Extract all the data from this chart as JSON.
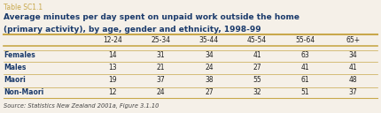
{
  "table_label": "Table SC1.1",
  "title_line1": "Average minutes per day spent on unpaid work outside the home",
  "title_line2": "(primary activity), by age, gender and ethnicity, 1998-99",
  "source": "Source: Statistics New Zealand 2001a, Figure 3.1.10",
  "columns": [
    "12-24",
    "25-34",
    "35-44",
    "45-54",
    "55-64",
    "65+"
  ],
  "rows": [
    {
      "label": "Females",
      "values": [
        14,
        31,
        34,
        41,
        63,
        34
      ]
    },
    {
      "label": "Males",
      "values": [
        13,
        21,
        24,
        27,
        41,
        41
      ]
    },
    {
      "label": "Maori",
      "values": [
        19,
        37,
        38,
        55,
        61,
        48
      ]
    },
    {
      "label": "Non-Maori",
      "values": [
        12,
        24,
        27,
        32,
        51,
        37
      ]
    }
  ],
  "bg_color": "#f5f0e8",
  "title_color": "#1a3a6b",
  "label_color": "#1a3a6b",
  "table_label_color": "#c8a84b",
  "data_color": "#222222",
  "source_color": "#444444",
  "divider_color": "#c8a84b"
}
